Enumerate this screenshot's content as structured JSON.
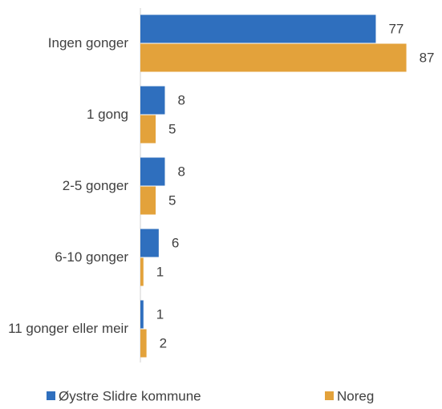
{
  "chart_data": {
    "type": "hbar",
    "categories": [
      "Ingen gonger",
      "1 gong",
      "2-5 gonger",
      "6-10 gonger",
      "11 gonger eller meir"
    ],
    "series": [
      {
        "name": "Øystre Slidre kommune",
        "color": "#2f6fbe",
        "values": [
          77,
          8,
          8,
          6,
          1
        ]
      },
      {
        "name": "Noreg",
        "color": "#e3a23b",
        "values": [
          87,
          5,
          5,
          1,
          2
        ]
      }
    ],
    "xlim": [
      0,
      90
    ],
    "legend": "bottom"
  }
}
